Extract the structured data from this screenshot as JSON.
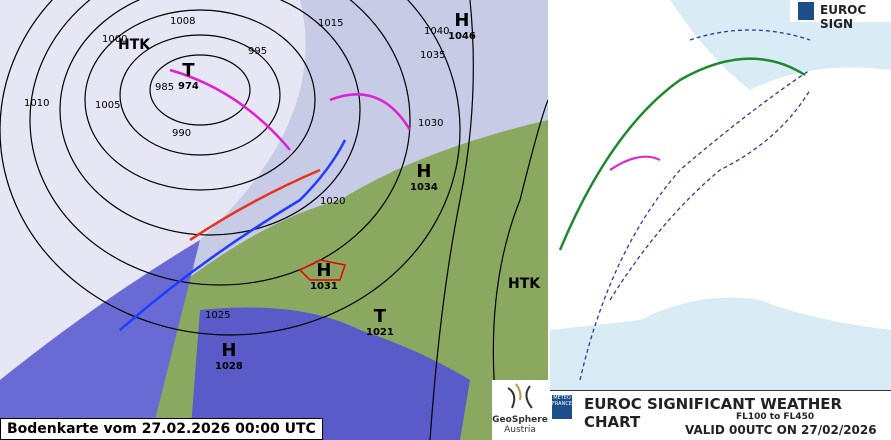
{
  "surface_chart": {
    "caption": "Bodenkarte vom 27.02.2026 00:00 UTC",
    "pressure_centers": [
      {
        "type": "H",
        "value": "1046"
      },
      {
        "type": "H",
        "value": "1034"
      },
      {
        "type": "H",
        "value": "1031"
      },
      {
        "type": "H",
        "value": "1028"
      },
      {
        "type": "T",
        "value": "974"
      },
      {
        "type": "T",
        "value": "1021"
      }
    ],
    "labels": [
      "HTK",
      "HTK"
    ],
    "isobars": [
      "995",
      "1000",
      "1005",
      "1010",
      "1015",
      "1020",
      "1025",
      "1030",
      "1035",
      "1040",
      "985",
      "990",
      "1008"
    ],
    "logo": {
      "line1": "GeoSphere",
      "line2": "Austria"
    },
    "colors": {
      "cold_front": "#1e3cff",
      "warm_front": "#e8321e",
      "occlusion": "#e020d0",
      "land": "#8aa860",
      "sea": "#5a5ac8",
      "cloud": "#d6d8f0"
    }
  },
  "sigwx_chart": {
    "title": "EUROC SIGNIFICANT WEATHER CHART",
    "levels": "FL100 to FL450",
    "valid": "VALID 00UTC ON 27/02/2026",
    "header_title": "EUROC SIGN",
    "provider": "METEO FRANCE",
    "colors": {
      "jet": "#1a8a2a",
      "turbulence": "#2a3a9a",
      "sea": "#d9ecf6",
      "land": "#ffffff"
    }
  }
}
